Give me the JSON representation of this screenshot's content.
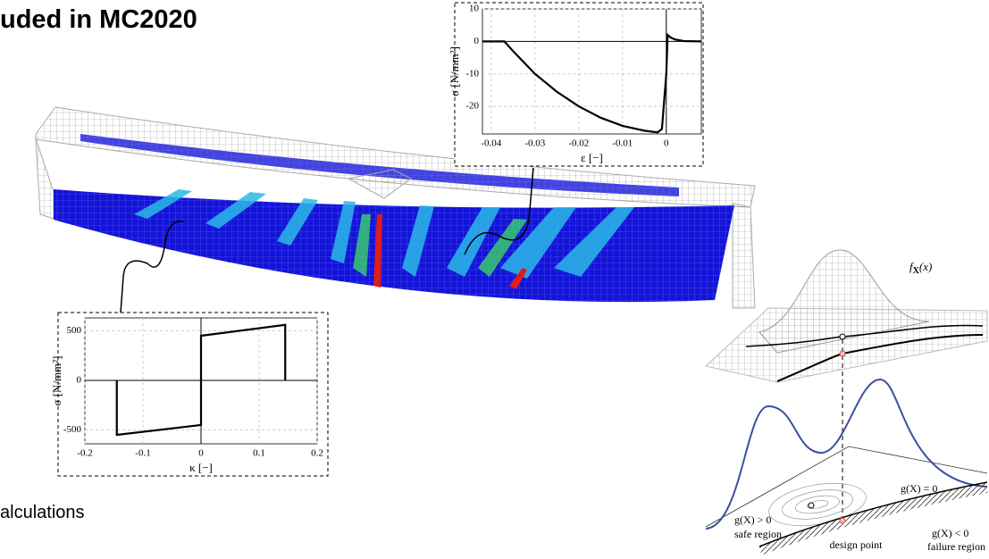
{
  "title": "uded in MC2020",
  "bullet": "alculations",
  "chart_data": [
    {
      "type": "line",
      "ylabel": "σ [N/mm²]",
      "xlabel": "ε [−]",
      "x": [
        -0.042,
        -0.037,
        -0.035,
        -0.03,
        -0.025,
        -0.02,
        -0.015,
        -0.01,
        -0.005,
        -0.002,
        -0.001,
        0,
        0.0003,
        0.001,
        0.002,
        0.004,
        0.008
      ],
      "series": [
        {
          "color": "#000000",
          "values": [
            0,
            0,
            -3,
            -10,
            -15.5,
            -20,
            -23.5,
            -26,
            -27.5,
            -28,
            -27,
            -10,
            2,
            1.2,
            0.6,
            0.1,
            0
          ]
        }
      ],
      "xlim": [
        -0.042,
        0.008
      ],
      "ylim": [
        -28.5,
        10
      ],
      "xticks": [
        -0.04,
        -0.03,
        -0.02,
        -0.01,
        0
      ],
      "yticks": [
        10,
        0,
        -10,
        -20
      ],
      "grid": true
    },
    {
      "type": "line",
      "ylabel": "σ [N/mm²]",
      "xlabel": "κ [−]",
      "x": [
        -0.145,
        -0.145,
        0,
        0,
        0.145,
        0.145
      ],
      "series": [
        {
          "color": "#000000",
          "values": [
            0,
            -550,
            -450,
            450,
            560,
            0
          ]
        }
      ],
      "xlim": [
        -0.2,
        0.2
      ],
      "ylim": [
        -640,
        630
      ],
      "xticks": [
        -0.2,
        -0.1,
        0,
        0.1,
        0.2
      ],
      "yticks": [
        500,
        0,
        -500
      ],
      "grid": true
    }
  ],
  "reliability": {
    "density_label": [
      "f",
      "X",
      "(x)"
    ],
    "limit_state": "g(X) = 0",
    "safe_condition": "g(X) > 0",
    "safe_label": "safe region",
    "design_point": "design point",
    "failure_condition": "g(X) < 0",
    "failure_label": "failure region"
  }
}
